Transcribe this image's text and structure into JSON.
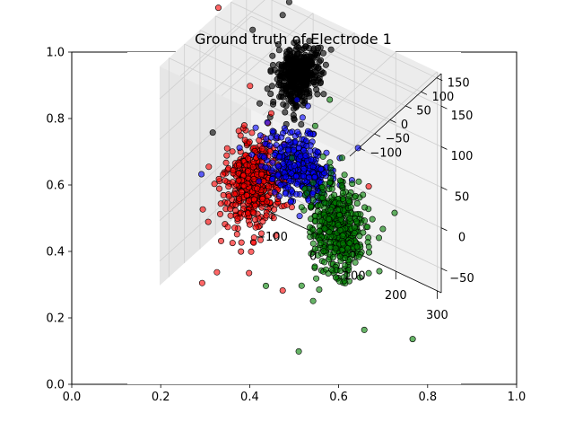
{
  "chart_data": {
    "type": "scatter",
    "title": "Ground truth of Electrode 1",
    "projection": "3d",
    "grid": true,
    "legend": "none",
    "outer_axes": {
      "x_ticks": [
        "0.0",
        "0.2",
        "0.4",
        "0.6",
        "0.8",
        "1.0"
      ],
      "y_ticks": [
        "0.0",
        "0.2",
        "0.4",
        "0.6",
        "0.8",
        "1.0"
      ],
      "xlim": [
        0,
        1
      ],
      "ylim": [
        0,
        1
      ]
    },
    "axes3d": {
      "x_ticks": [
        "-100",
        "0",
        "100",
        "200",
        "300"
      ],
      "y_ticks": [
        "-50",
        "0",
        "50",
        "100",
        "150"
      ],
      "z_ticks": [
        "-100",
        "-50",
        "0",
        "50",
        "100",
        "150"
      ],
      "xlim": [
        -150,
        310
      ],
      "ylim": [
        -80,
        190
      ],
      "zlim": [
        -130,
        165
      ]
    },
    "series": [
      {
        "color": "#000000",
        "count": 420,
        "center": [
          40,
          160,
          60
        ],
        "spread": [
          18,
          14,
          25
        ],
        "outliers": 22
      },
      {
        "color": "#ff0000",
        "count": 480,
        "center": [
          -10,
          40,
          -20
        ],
        "spread": [
          25,
          25,
          25
        ],
        "outliers": 18
      },
      {
        "color": "#0000ff",
        "count": 340,
        "center": [
          120,
          100,
          -40
        ],
        "spread": [
          35,
          18,
          20
        ],
        "outliers": 16
      },
      {
        "color": "#008000",
        "count": 460,
        "center": [
          190,
          30,
          -10
        ],
        "spread": [
          28,
          25,
          22
        ],
        "outliers": 20
      }
    ]
  }
}
